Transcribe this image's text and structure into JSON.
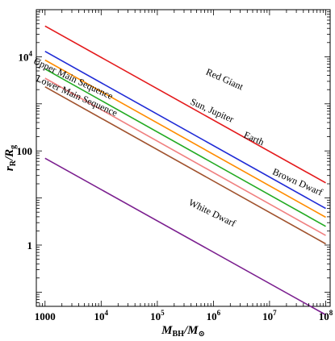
{
  "chart_data": {
    "type": "line",
    "xscale": "log",
    "yscale": "log",
    "xlim": [
      700,
      120000000
    ],
    "ylim": [
      0.05,
      100000
    ],
    "grid": false,
    "legend": "none",
    "xlabel": {
      "main": "M",
      "sub1": "BH",
      "mid": "/M",
      "sub2": "⊙"
    },
    "ylabel": {
      "main": "r",
      "sub1": "R",
      "mid": "/R",
      "sub2": "g"
    },
    "x_ticks": [
      {
        "value": 1000,
        "label": "1000"
      },
      {
        "value": 10000,
        "label": "10",
        "exp": "4"
      },
      {
        "value": 100000,
        "label": "10",
        "exp": "5"
      },
      {
        "value": 1000000,
        "label": "10",
        "exp": "6"
      },
      {
        "value": 10000000,
        "label": "10",
        "exp": "7"
      },
      {
        "value": 100000000,
        "label": "10",
        "exp": "8"
      }
    ],
    "y_ticks": [
      {
        "value": 1,
        "label": "1"
      },
      {
        "value": 100,
        "label": "100"
      },
      {
        "value": 10000,
        "label": "10",
        "exp": "4"
      }
    ],
    "series": [
      {
        "name": "Red Giant",
        "color": "#e41a1c",
        "x": [
          1000,
          100000000
        ],
        "y": [
          45000,
          21
        ]
      },
      {
        "name": "Upper Main Sequence",
        "color": "#1f2bd6",
        "x": [
          1000,
          100000000
        ],
        "y": [
          13000,
          6
        ]
      },
      {
        "name": "",
        "color": "#ff8c00",
        "x": [
          1000,
          100000000
        ],
        "y": [
          8500,
          3.9
        ]
      },
      {
        "name": "Sun, Jupiter",
        "color": "#555555",
        "x": [],
        "y": []
      },
      {
        "name": "Earth",
        "color": "#22aa22",
        "x": [
          1000,
          100000000
        ],
        "y": [
          5500,
          2.5
        ]
      },
      {
        "name": "",
        "color": "#f08080",
        "x": [
          1000,
          100000000
        ],
        "y": [
          3500,
          1.6
        ]
      },
      {
        "name": "Lower Main Sequence",
        "color": "#a0522d",
        "x": [
          1000,
          100000000
        ],
        "y": [
          2300,
          1.06
        ]
      },
      {
        "name": "Brown Dwarf",
        "color": "#a0522d",
        "x": [],
        "y": []
      },
      {
        "name": "White Dwarf",
        "color": "#7b1f8f",
        "x": [
          1000,
          100000000
        ],
        "y": [
          70,
          0.033
        ]
      }
    ],
    "annotations": [
      {
        "text": "Upper Main Sequence",
        "x": 3000,
        "y": 3000,
        "rotate": 25
      },
      {
        "text": "Lower Main Sequence",
        "x": 3500,
        "y": 1300,
        "rotate": 24
      },
      {
        "text": "Red Giant",
        "x": 1500000,
        "y": 2900,
        "rotate": 24
      },
      {
        "text": "Sun, Jupiter",
        "x": 900000,
        "y": 630,
        "rotate": 24
      },
      {
        "text": "Earth",
        "x": 5000000,
        "y": 160,
        "rotate": 24
      },
      {
        "text": "Brown Dwarf",
        "x": 30000000,
        "y": 19,
        "rotate": 24
      },
      {
        "text": "White Dwarf",
        "x": 900000,
        "y": 4.2,
        "rotate": 26
      }
    ]
  }
}
